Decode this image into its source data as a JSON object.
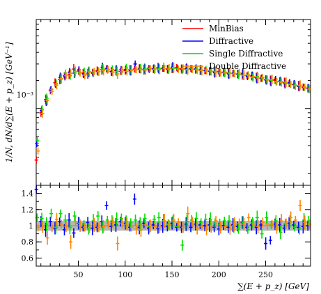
{
  "chart_data": [
    {
      "type": "scatter",
      "panel": "main",
      "ylabel": "1/N, dN/d∑(E + p_z) [GeV⁻¹]",
      "y_scale": "log",
      "xlim": [
        5,
        298
      ],
      "ylim": [
        0.00015,
        0.009
      ],
      "y_tick_labels": [
        "10⁻³"
      ],
      "legend_placement": "top-right",
      "legend": [
        "MinBias",
        "Diffractive",
        "Single Diffractive",
        "Double Diffractive"
      ],
      "series": [
        {
          "name": "MinBias",
          "color": "#ff0000",
          "x": [
            6,
            11,
            16,
            21,
            26,
            31,
            36,
            41,
            46,
            51,
            56,
            61,
            66,
            71,
            76,
            81,
            86,
            91,
            96,
            101,
            106,
            111,
            116,
            121,
            126,
            131,
            136,
            141,
            146,
            151,
            156,
            161,
            166,
            171,
            176,
            181,
            186,
            191,
            196,
            201,
            206,
            211,
            216,
            221,
            226,
            231,
            236,
            241,
            246,
            251,
            256,
            261,
            266,
            271,
            276,
            281,
            286,
            291,
            296
          ],
          "y": [
            0.00028,
            0.0009,
            0.00125,
            0.00155,
            0.0019,
            0.00205,
            0.00225,
            0.0023,
            0.00265,
            0.00252,
            0.0024,
            0.00235,
            0.00245,
            0.00255,
            0.0026,
            0.00265,
            0.0025,
            0.00255,
            0.0025,
            0.00255,
            0.0026,
            0.00265,
            0.0027,
            0.0026,
            0.0027,
            0.00265,
            0.00275,
            0.0027,
            0.00265,
            0.0027,
            0.00275,
            0.00268,
            0.00265,
            0.0027,
            0.00262,
            0.00258,
            0.00255,
            0.0025,
            0.00248,
            0.0025,
            0.00245,
            0.0024,
            0.00238,
            0.00235,
            0.0023,
            0.00225,
            0.00222,
            0.00215,
            0.0021,
            0.00205,
            0.002,
            0.002,
            0.00195,
            0.0019,
            0.00185,
            0.0018,
            0.00175,
            0.0017,
            0.00165
          ]
        },
        {
          "name": "Diffractive",
          "color": "#0000ff",
          "x": [
            6,
            11,
            16,
            21,
            26,
            31,
            36,
            41,
            46,
            51,
            56,
            61,
            66,
            71,
            76,
            81,
            86,
            91,
            96,
            101,
            106,
            111,
            116,
            121,
            126,
            131,
            136,
            141,
            146,
            151,
            156,
            161,
            166,
            171,
            176,
            181,
            186,
            191,
            196,
            201,
            206,
            211,
            216,
            221,
            226,
            231,
            236,
            241,
            246,
            251,
            256,
            261,
            266,
            271,
            276,
            281,
            286,
            291,
            296
          ],
          "y": [
            0.00042,
            0.00095,
            0.0012,
            0.0016,
            0.00185,
            0.00215,
            0.00218,
            0.00245,
            0.0024,
            0.0026,
            0.00235,
            0.00245,
            0.00238,
            0.0025,
            0.00275,
            0.0027,
            0.00248,
            0.00258,
            0.00262,
            0.00262,
            0.00255,
            0.003,
            0.00265,
            0.00268,
            0.00262,
            0.00268,
            0.00268,
            0.0027,
            0.00262,
            0.00278,
            0.0027,
            0.00262,
            0.0027,
            0.00265,
            0.00268,
            0.0026,
            0.00255,
            0.00252,
            0.00242,
            0.0024,
            0.00245,
            0.00235,
            0.0024,
            0.00232,
            0.00238,
            0.0022,
            0.00225,
            0.0021,
            0.00212,
            0.002,
            0.00195,
            0.00205,
            0.00198,
            0.00185,
            0.0019,
            0.00182,
            0.00172,
            0.00168,
            0.00165
          ]
        },
        {
          "name": "Single Diffractive",
          "color": "#00dd00",
          "x": [
            6,
            11,
            16,
            21,
            26,
            31,
            36,
            41,
            46,
            51,
            56,
            61,
            66,
            71,
            76,
            81,
            86,
            91,
            96,
            101,
            106,
            111,
            116,
            121,
            126,
            131,
            136,
            141,
            146,
            151,
            156,
            161,
            166,
            171,
            176,
            181,
            186,
            191,
            196,
            201,
            206,
            211,
            216,
            221,
            226,
            231,
            236,
            241,
            246,
            251,
            256,
            261,
            266,
            271,
            276,
            281,
            286,
            291,
            296
          ],
          "y": [
            0.00045,
            0.00098,
            0.00128,
            0.0016,
            0.00185,
            0.00205,
            0.0024,
            0.00225,
            0.0024,
            0.00245,
            0.00248,
            0.0025,
            0.0024,
            0.0025,
            0.00265,
            0.00258,
            0.00262,
            0.0025,
            0.00248,
            0.00272,
            0.0026,
            0.00262,
            0.0027,
            0.00265,
            0.00268,
            0.00262,
            0.00268,
            0.00285,
            0.00262,
            0.0027,
            0.00268,
            0.00265,
            0.0026,
            0.0027,
            0.00265,
            0.00258,
            0.00262,
            0.00255,
            0.0025,
            0.00245,
            0.0024,
            0.00242,
            0.00238,
            0.0023,
            0.00228,
            0.0023,
            0.00215,
            0.0022,
            0.00208,
            0.00205,
            0.002,
            0.00192,
            0.00195,
            0.00188,
            0.00182,
            0.00178,
            0.00175,
            0.00168,
            0.00162
          ]
        },
        {
          "name": "Double Diffractive",
          "color": "#ff8800",
          "x": [
            6,
            11,
            16,
            21,
            26,
            31,
            36,
            41,
            46,
            51,
            56,
            61,
            66,
            71,
            76,
            81,
            86,
            91,
            96,
            101,
            106,
            111,
            116,
            121,
            126,
            131,
            136,
            141,
            146,
            151,
            156,
            161,
            166,
            171,
            176,
            181,
            186,
            191,
            196,
            201,
            206,
            211,
            216,
            221,
            226,
            231,
            236,
            241,
            246,
            251,
            256,
            261,
            266,
            271,
            276,
            281,
            286,
            291,
            296
          ],
          "y": [
            0.00035,
            0.00088,
            0.00122,
            0.00152,
            0.00178,
            0.0021,
            0.00225,
            0.00238,
            0.0025,
            0.0024,
            0.00228,
            0.00245,
            0.0025,
            0.00248,
            0.00255,
            0.00262,
            0.00245,
            0.00235,
            0.0026,
            0.0025,
            0.00255,
            0.0026,
            0.00262,
            0.00258,
            0.0027,
            0.00265,
            0.00262,
            0.00268,
            0.0027,
            0.00275,
            0.00262,
            0.00268,
            0.00262,
            0.00262,
            0.00258,
            0.00255,
            0.00252,
            0.0025,
            0.00245,
            0.0024,
            0.00245,
            0.00238,
            0.00235,
            0.0024,
            0.00228,
            0.00225,
            0.0022,
            0.00212,
            0.00215,
            0.00202,
            0.00205,
            0.00195,
            0.0019,
            0.00192,
            0.00182,
            0.00175,
            0.00178,
            0.0017,
            0.00162
          ]
        }
      ]
    },
    {
      "type": "scatter",
      "panel": "ratio",
      "xlabel": "∑(E + p_z) [GeV]",
      "xlim": [
        5,
        298
      ],
      "ylim": [
        0.5,
        1.5
      ],
      "x_ticks": [
        50,
        100,
        150,
        200,
        250
      ],
      "y_ticks": [
        0.6,
        0.8,
        1,
        1.2,
        1.4
      ],
      "band_color": "#b8b8b8",
      "series": [
        {
          "name": "Diffractive",
          "color": "#0000ff",
          "x": [
            6,
            11,
            16,
            21,
            26,
            31,
            36,
            41,
            46,
            51,
            56,
            61,
            66,
            71,
            76,
            81,
            86,
            91,
            96,
            101,
            106,
            111,
            116,
            121,
            126,
            131,
            136,
            141,
            146,
            151,
            156,
            161,
            166,
            171,
            176,
            181,
            186,
            191,
            196,
            201,
            206,
            211,
            216,
            221,
            226,
            231,
            236,
            241,
            246,
            251,
            256,
            261,
            266,
            271,
            276,
            281,
            286,
            291,
            296
          ],
          "y": [
            1.45,
            1.05,
            0.95,
            1.05,
            0.97,
            1.05,
            0.95,
            1.07,
            0.91,
            1.03,
            0.98,
            1.04,
            0.97,
            0.98,
            1.05,
            1.25,
            0.99,
            1.01,
            1.05,
            1.03,
            0.98,
            1.33,
            0.98,
            1.03,
            0.97,
            1.01,
            0.97,
            1.0,
            0.99,
            1.03,
            0.98,
            0.98,
            1.02,
            0.98,
            1.02,
            1.01,
            1.0,
            1.01,
            0.98,
            0.96,
            1.0,
            0.98,
            1.01,
            0.99,
            1.04,
            0.98,
            1.01,
            0.98,
            1.01,
            0.78,
            0.82,
            1.02,
            1.01,
            0.97,
            1.03,
            1.01,
            0.98,
            0.99,
            1.0
          ]
        },
        {
          "name": "Single Diffractive",
          "color": "#00dd00",
          "x": [
            6,
            11,
            16,
            21,
            26,
            31,
            36,
            41,
            46,
            51,
            56,
            61,
            66,
            71,
            76,
            81,
            86,
            91,
            96,
            101,
            106,
            111,
            116,
            121,
            126,
            131,
            136,
            141,
            146,
            151,
            156,
            161,
            166,
            171,
            176,
            181,
            186,
            191,
            196,
            201,
            206,
            211,
            216,
            221,
            226,
            231,
            236,
            241,
            246,
            251,
            256,
            261,
            266,
            271,
            276,
            281,
            286,
            291,
            296
          ],
          "y": [
            1.1,
            1.09,
            1.02,
            1.15,
            0.98,
            1.15,
            1.07,
            0.98,
            1.12,
            1.03,
            1.02,
            0.96,
            1.06,
            1.12,
            0.98,
            1.07,
            1.06,
            1.08,
            1.09,
            1.05,
            1.04,
            1.07,
            1.02,
            1.09,
            0.99,
            1.08,
            1.1,
            1.06,
            1.02,
            1.05,
            0.99,
            0.76,
            1.05,
            1.07,
            1.09,
            1.04,
            1.08,
            1.08,
            1.03,
            1.01,
            1.06,
            1.06,
            1.0,
            0.96,
            1.04,
            0.95,
            1.04,
            1.1,
            0.9,
            1.1,
            1.01,
            1.06,
            0.92,
            1.02,
            1.05,
            0.98,
            0.96,
            1.07,
            1.06
          ]
        },
        {
          "name": "Double Diffractive",
          "color": "#ff8800",
          "x": [
            6,
            11,
            16,
            21,
            26,
            31,
            36,
            41,
            46,
            51,
            56,
            61,
            66,
            71,
            76,
            81,
            86,
            91,
            96,
            101,
            106,
            111,
            116,
            121,
            126,
            131,
            136,
            141,
            146,
            151,
            156,
            161,
            166,
            171,
            176,
            181,
            186,
            191,
            196,
            201,
            206,
            211,
            216,
            221,
            226,
            231,
            236,
            241,
            246,
            251,
            256,
            261,
            266,
            271,
            276,
            281,
            286,
            291,
            296
          ],
          "y": [
            0.98,
            0.98,
            0.85,
            0.98,
            1.08,
            1.02,
            0.99,
            0.8,
            1.05,
            1.0,
            0.98,
            0.98,
            1.01,
            0.98,
            0.99,
            1.02,
            1.04,
            0.78,
            1.03,
            1.02,
            0.98,
            0.96,
            0.95,
            1.01,
            1.0,
            0.99,
            0.98,
            1.06,
            1.01,
            1.07,
            1.04,
            0.98,
            1.15,
            1.05,
            0.97,
            0.99,
            0.95,
            1.0,
            1.06,
            0.98,
            0.99,
            0.96,
            1.02,
            1.03,
            1.02,
            1.1,
            1.02,
            0.99,
            1.04,
            1.02,
            1.02,
            0.97,
            1.06,
            1.03,
            1.1,
            1.07,
            1.25,
            1.04,
            1.02
          ]
        }
      ]
    }
  ]
}
